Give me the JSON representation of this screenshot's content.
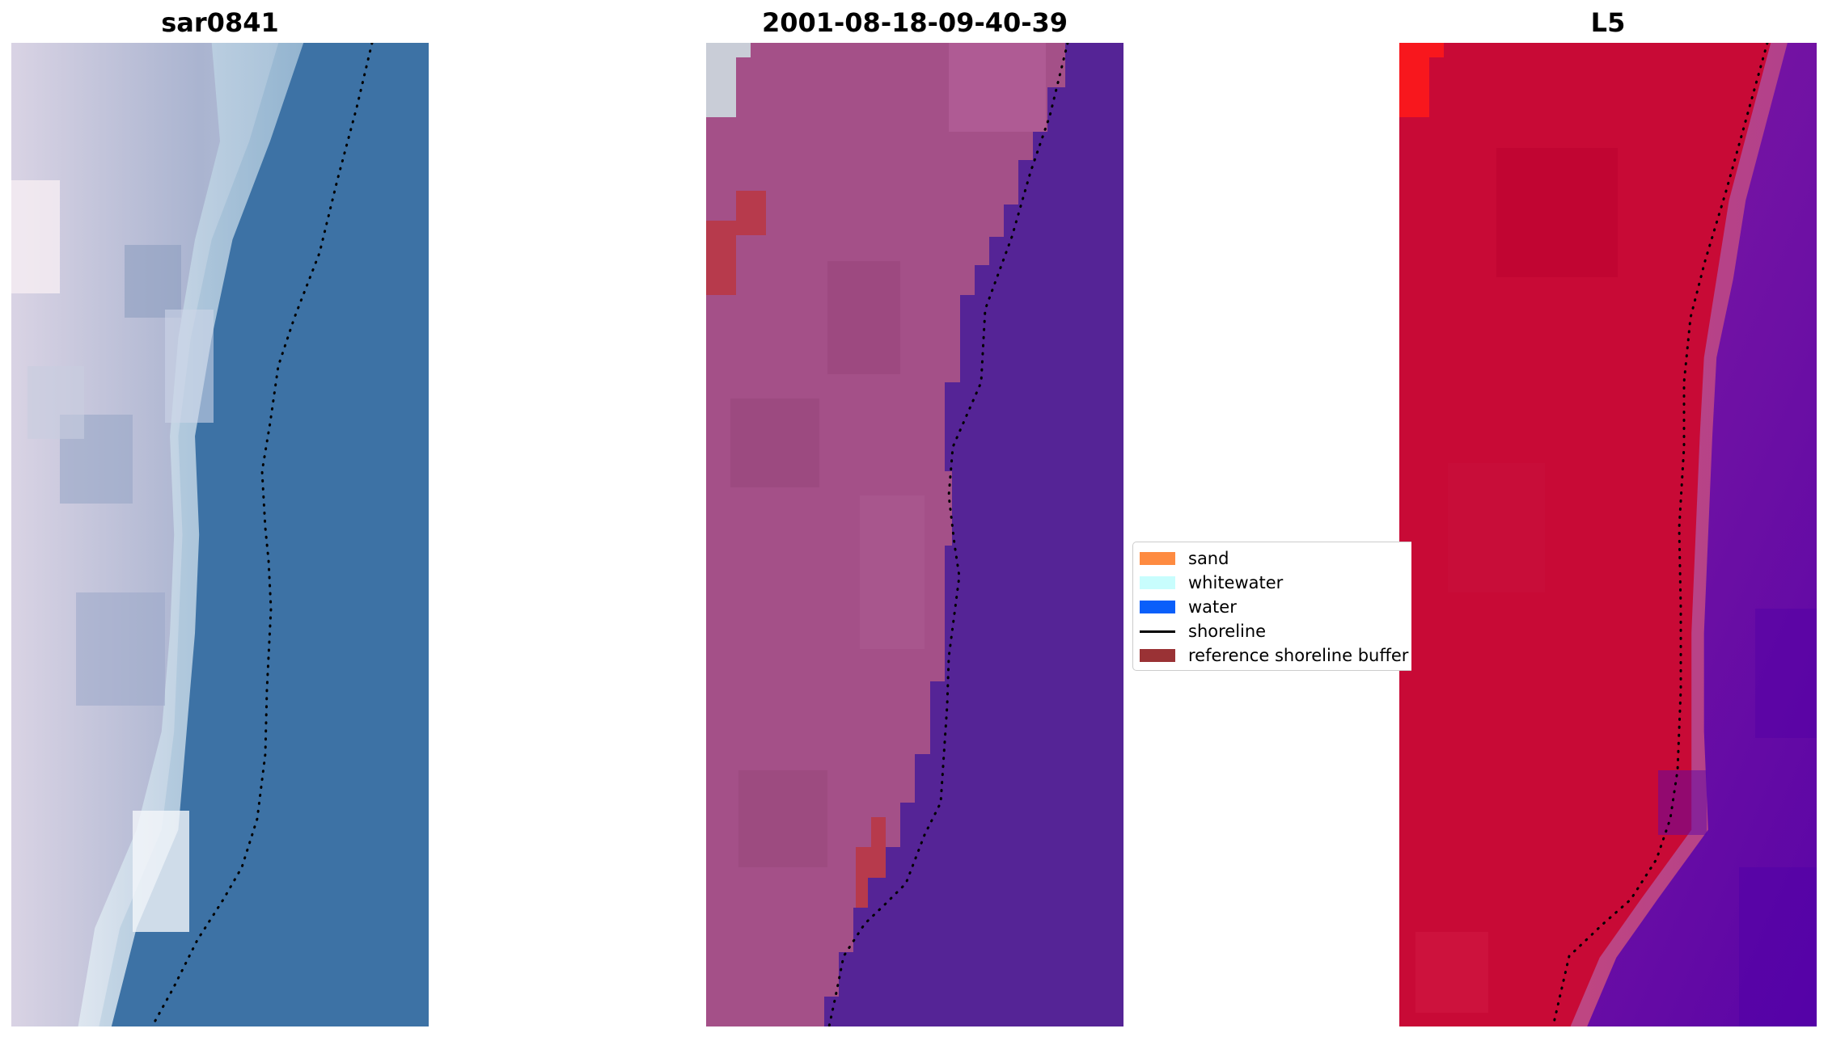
{
  "figure": {
    "panels": [
      {
        "title": "sar0841",
        "shoreline_color": "#000000"
      },
      {
        "title": "2001-08-18-09-40-39",
        "shoreline_color": "#000000"
      },
      {
        "title": "L5",
        "shoreline_color": "#000000"
      }
    ],
    "legend": {
      "placement": "center-right",
      "items": [
        {
          "label": "sand",
          "color": "#fe8b41",
          "kind": "patch"
        },
        {
          "label": "whitewater",
          "color": "#c8fdfd",
          "kind": "patch"
        },
        {
          "label": "water",
          "color": "#0a5ffa",
          "kind": "patch"
        },
        {
          "label": "shoreline",
          "color": "#000000",
          "kind": "line"
        },
        {
          "label": "reference shoreline buffer",
          "color": "#9a3235",
          "kind": "patch"
        }
      ]
    }
  }
}
